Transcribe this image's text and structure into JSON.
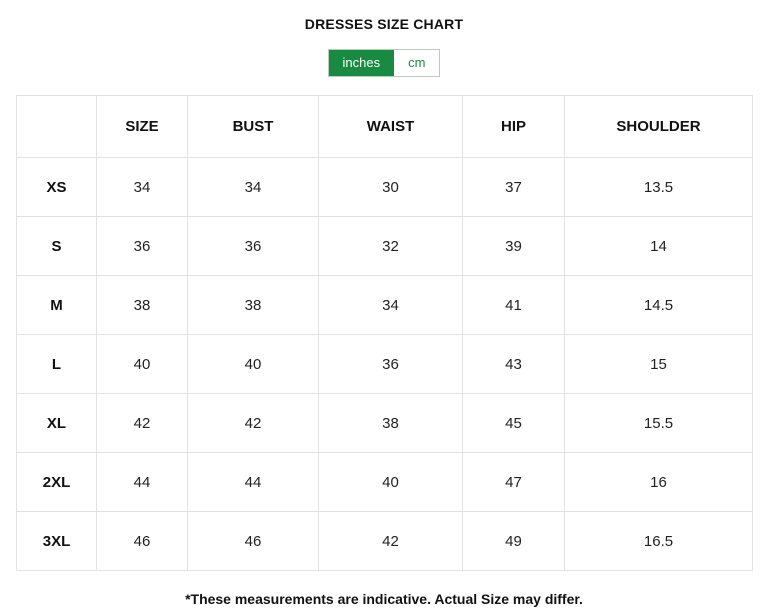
{
  "title": "DRESSES SIZE CHART",
  "unit_toggle": {
    "options": [
      {
        "label": "inches",
        "active": true
      },
      {
        "label": "cm",
        "active": false
      }
    ]
  },
  "colors": {
    "accent_green": "#188a42",
    "table_border": "#e2e2e2"
  },
  "chart_data": {
    "type": "table",
    "title": "DRESSES SIZE CHART",
    "unit": "inches",
    "headers": [
      "",
      "SIZE",
      "BUST",
      "WAIST",
      "HIP",
      "SHOULDER"
    ],
    "rows": [
      {
        "label": "XS",
        "values": [
          "34",
          "34",
          "30",
          "37",
          "13.5"
        ]
      },
      {
        "label": "S",
        "values": [
          "36",
          "36",
          "32",
          "39",
          "14"
        ]
      },
      {
        "label": "M",
        "values": [
          "38",
          "38",
          "34",
          "41",
          "14.5"
        ]
      },
      {
        "label": "L",
        "values": [
          "40",
          "40",
          "36",
          "43",
          "15"
        ]
      },
      {
        "label": "XL",
        "values": [
          "42",
          "42",
          "38",
          "45",
          "15.5"
        ]
      },
      {
        "label": "2XL",
        "values": [
          "44",
          "44",
          "40",
          "47",
          "16"
        ]
      },
      {
        "label": "3XL",
        "values": [
          "46",
          "46",
          "42",
          "49",
          "16.5"
        ]
      }
    ]
  },
  "footnote": "*These measurements are indicative. Actual Size may differ."
}
